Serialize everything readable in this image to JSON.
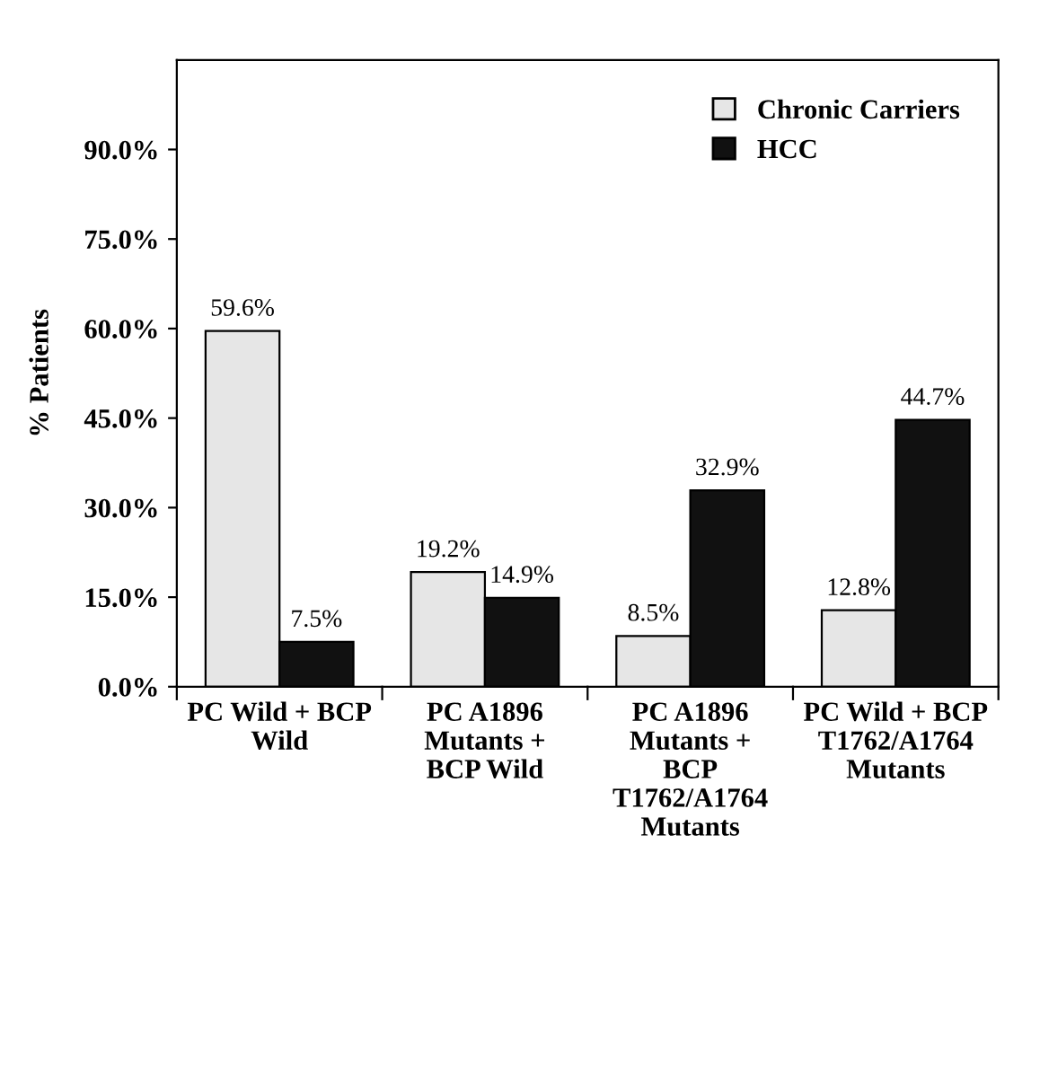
{
  "chart_data": {
    "type": "bar",
    "ylabel": "% Patients",
    "categories": [
      "PC Wild + BCP\nWild",
      "PC A1896\nMutants +\nBCP Wild",
      "PC A1896\nMutants +\nBCP\nT1762/A1764\nMutants",
      "PC Wild + BCP\nT1762/A1764\nMutants"
    ],
    "series": [
      {
        "name": "Chronic Carriers",
        "color": "#e6e6e6",
        "values": [
          59.6,
          19.2,
          8.5,
          12.8
        ],
        "value_labels": [
          "59.6%",
          "19.2%",
          "8.5%",
          "12.8%"
        ]
      },
      {
        "name": "HCC",
        "color": "#111111",
        "values": [
          7.5,
          14.9,
          32.9,
          44.7
        ],
        "value_labels": [
          "7.5%",
          "14.9%",
          "32.9%",
          "44.7%"
        ]
      }
    ],
    "ylim": [
      0,
      105
    ],
    "yticks": [
      {
        "value": 0,
        "label": "0.0%"
      },
      {
        "value": 15,
        "label": "15.0%"
      },
      {
        "value": 30,
        "label": "30.0%"
      },
      {
        "value": 45,
        "label": "45.0%"
      },
      {
        "value": 60,
        "label": "60.0%"
      },
      {
        "value": 75,
        "label": "75.0%"
      },
      {
        "value": 90,
        "label": "90.0%"
      }
    ],
    "grid": false,
    "legend": "top right"
  }
}
